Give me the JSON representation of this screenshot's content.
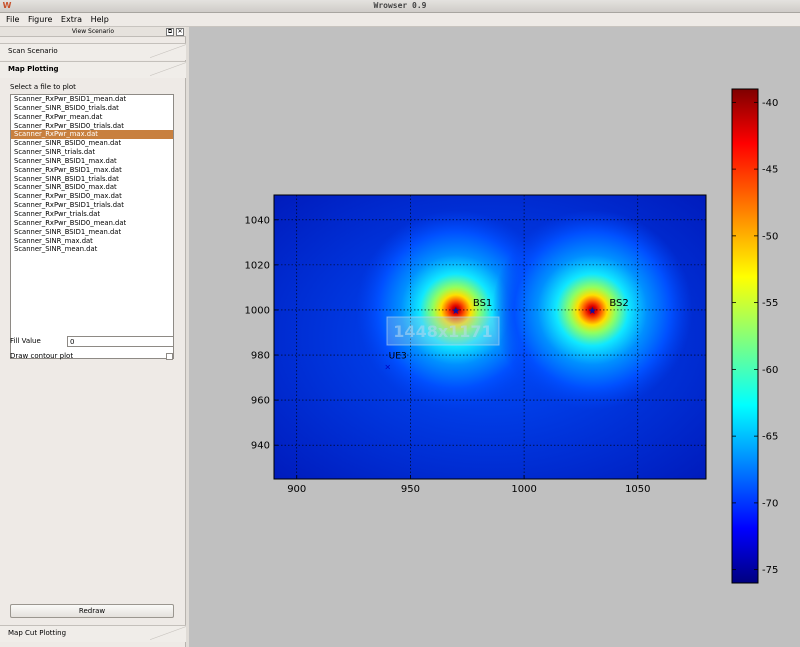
{
  "window": {
    "title": "Wrowser 0.9"
  },
  "menu": {
    "items": [
      "File",
      "Figure",
      "Extra",
      "Help"
    ]
  },
  "dock": {
    "title": "View Scenario",
    "float_glyph": "⧉",
    "close_glyph": "✕"
  },
  "sections": {
    "scan": "Scan Scenario",
    "map": "Map Plotting",
    "cut": "Map Cut Plotting"
  },
  "map_plotting": {
    "select_label": "Select a file to plot",
    "files": [
      "Scanner_RxPwr_BSID1_mean.dat",
      "Scanner_SINR_BSID0_trials.dat",
      "Scanner_RxPwr_mean.dat",
      "Scanner_RxPwr_BSID0_trials.dat",
      "Scanner_RxPwr_max.dat",
      "Scanner_SINR_BSID0_mean.dat",
      "Scanner_SINR_trials.dat",
      "Scanner_SINR_BSID1_max.dat",
      "Scanner_RxPwr_BSID1_max.dat",
      "Scanner_SINR_BSID1_trials.dat",
      "Scanner_SINR_BSID0_max.dat",
      "Scanner_RxPwr_BSID0_max.dat",
      "Scanner_RxPwr_BSID1_trials.dat",
      "Scanner_RxPwr_trials.dat",
      "Scanner_RxPwr_BSID0_mean.dat",
      "Scanner_SINR_BSID1_mean.dat",
      "Scanner_SINR_max.dat",
      "Scanner_SINR_mean.dat"
    ],
    "selected_index": 4,
    "fill_label": "Fill Value",
    "fill_value": "0",
    "contour_label": "Draw contour plot",
    "contour_checked": false,
    "redraw_label": "Redraw"
  },
  "chart_data": {
    "type": "heatmap",
    "xlim": [
      890,
      1080
    ],
    "ylim": [
      925,
      1051
    ],
    "x_ticks": [
      900,
      950,
      1000,
      1050
    ],
    "y_ticks": [
      940,
      960,
      980,
      1000,
      1020,
      1040
    ],
    "grid": true,
    "overlay_text": "1448x1171",
    "markers": [
      {
        "label": "BS1",
        "x": 970,
        "y": 1000,
        "symbol": "*"
      },
      {
        "label": "BS2",
        "x": 1030,
        "y": 1000,
        "symbol": "*"
      },
      {
        "label": "UE3",
        "x": 940,
        "y": 975,
        "symbol": "x"
      }
    ],
    "colorbar": {
      "range": [
        -76,
        -39
      ],
      "ticks": [
        -40,
        -45,
        -50,
        -55,
        -60,
        -65,
        -70,
        -75
      ]
    }
  }
}
